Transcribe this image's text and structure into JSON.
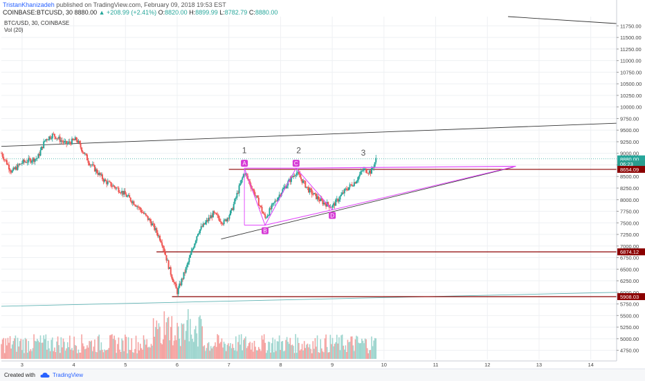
{
  "header": {
    "author": "TristanKhanizadeh",
    "published": " published on TradingView.com, February 09, 2018 19:53 EST",
    "symbol": "COINBASE:BTCUSD, 30",
    "last": "8880.00",
    "change": "+208.99 (+2.41%)",
    "o_label": "O:",
    "o": "8820.00",
    "h_label": "H:",
    "h": "8899.99",
    "l_label": "L:",
    "l": "8782.79",
    "c_label": "C:",
    "c": "8880.00"
  },
  "chart_title": "BTC/USD, 30, COINBASE",
  "volume_label": "Vol (20)",
  "footer": {
    "created": "Created with",
    "brand": "TradingView"
  },
  "colors": {
    "up": "#26a69a",
    "down": "#ef5350",
    "level": "#8b0000",
    "pattern": "#e040fb",
    "marker": "#d63ad6"
  },
  "chart_data": {
    "type": "candlestick",
    "y_axis": {
      "ticks": [
        4750,
        5000,
        5250,
        5500,
        5750,
        6000,
        6250,
        6500,
        6750,
        7000,
        7250,
        7500,
        7750,
        8000,
        8250,
        8500,
        8750,
        9000,
        9250,
        9500,
        9750,
        10000,
        10250,
        10500,
        10750,
        11000,
        11250,
        11500,
        11750
      ],
      "tick_labels": [
        "4750.00",
        "5000.00",
        "5250.00",
        "5500.00",
        "5750.00",
        "6000.00",
        "6250.00",
        "6500.00",
        "6750.00",
        "7000.00",
        "7250.00",
        "7500.00",
        "7750.00",
        "8000.00",
        "8250.00",
        "8500.00",
        "8750.00",
        "9000.00",
        "9250.00",
        "9500.00",
        "9750.00",
        "10000.00",
        "10250.00",
        "10500.00",
        "10750.00",
        "11000.00",
        "11250.00",
        "11500.00",
        "11750.00"
      ],
      "range": [
        4550,
        11950
      ],
      "position": "right"
    },
    "x_axis": {
      "ticks": [
        3,
        4,
        5,
        6,
        7,
        8,
        9,
        10,
        11,
        12,
        13,
        14
      ],
      "tick_labels": [
        "3",
        "4",
        "5",
        "6",
        "7",
        "8",
        "9",
        "10",
        "11",
        "12",
        "13",
        "14"
      ],
      "range": [
        2.6,
        14.5
      ]
    },
    "price_labels": [
      {
        "text": "8880.00",
        "value": 8880,
        "style": "last"
      },
      {
        "text": "06:23",
        "value": 8770,
        "style": "timer"
      },
      {
        "text": "8654.09",
        "value": 8654.09,
        "style": "level"
      },
      {
        "text": "6874.12",
        "value": 6874.12,
        "style": "level"
      },
      {
        "text": "5908.03",
        "value": 5908.03,
        "style": "level"
      }
    ],
    "horizontal_levels": [
      {
        "value": 8654.09,
        "from": 7.0
      },
      {
        "value": 6874.12,
        "from": 5.6
      },
      {
        "value": 5908.03,
        "from": 5.9
      }
    ],
    "trend_lines": [
      {
        "points": [
          [
            2.6,
            9150
          ],
          [
            14.5,
            9650
          ]
        ],
        "color": "#333333"
      },
      {
        "points": [
          [
            12.4,
            11950
          ],
          [
            14.5,
            11800
          ]
        ],
        "color": "#333333"
      },
      {
        "points": [
          [
            6.85,
            7150
          ],
          [
            12.5,
            8700
          ]
        ],
        "color": "#333333"
      },
      {
        "points": [
          [
            2.6,
            5700
          ],
          [
            14.5,
            6000
          ]
        ],
        "color": "#5fb3b3"
      }
    ],
    "pattern": {
      "points": [
        {
          "label": "A",
          "x": 7.3,
          "y": 8680
        },
        {
          "label": "B",
          "x": 7.7,
          "y": 7450
        },
        {
          "label": "C",
          "x": 8.3,
          "y": 8680
        },
        {
          "label": "D",
          "x": 9.0,
          "y": 7780
        }
      ],
      "extension": {
        "to_x": 12.55,
        "to_y": 8720
      },
      "wave_labels": [
        {
          "text": "1",
          "x": 7.3,
          "y": 9000
        },
        {
          "text": "2",
          "x": 8.35,
          "y": 9000
        },
        {
          "text": "3",
          "x": 9.6,
          "y": 8950
        }
      ]
    },
    "anchors": [
      {
        "x": 2.6,
        "y": 9000
      },
      {
        "x": 2.8,
        "y": 8600
      },
      {
        "x": 3.0,
        "y": 8800
      },
      {
        "x": 3.3,
        "y": 8900
      },
      {
        "x": 3.45,
        "y": 9300
      },
      {
        "x": 3.6,
        "y": 9400
      },
      {
        "x": 3.85,
        "y": 9200
      },
      {
        "x": 4.05,
        "y": 9300
      },
      {
        "x": 4.3,
        "y": 8800
      },
      {
        "x": 4.6,
        "y": 8400
      },
      {
        "x": 4.9,
        "y": 8200
      },
      {
        "x": 5.2,
        "y": 7900
      },
      {
        "x": 5.5,
        "y": 7500
      },
      {
        "x": 5.7,
        "y": 7100
      },
      {
        "x": 5.85,
        "y": 6500
      },
      {
        "x": 6.0,
        "y": 6000
      },
      {
        "x": 6.2,
        "y": 6600
      },
      {
        "x": 6.4,
        "y": 7300
      },
      {
        "x": 6.7,
        "y": 7700
      },
      {
        "x": 6.9,
        "y": 7500
      },
      {
        "x": 7.05,
        "y": 7750
      },
      {
        "x": 7.3,
        "y": 8600
      },
      {
        "x": 7.55,
        "y": 8000
      },
      {
        "x": 7.7,
        "y": 7600
      },
      {
        "x": 8.0,
        "y": 8150
      },
      {
        "x": 8.3,
        "y": 8600
      },
      {
        "x": 8.55,
        "y": 8200
      },
      {
        "x": 8.8,
        "y": 7950
      },
      {
        "x": 9.0,
        "y": 7850
      },
      {
        "x": 9.25,
        "y": 8200
      },
      {
        "x": 9.45,
        "y": 8400
      },
      {
        "x": 9.6,
        "y": 8650
      },
      {
        "x": 9.75,
        "y": 8600
      },
      {
        "x": 9.85,
        "y": 8880
      }
    ]
  }
}
